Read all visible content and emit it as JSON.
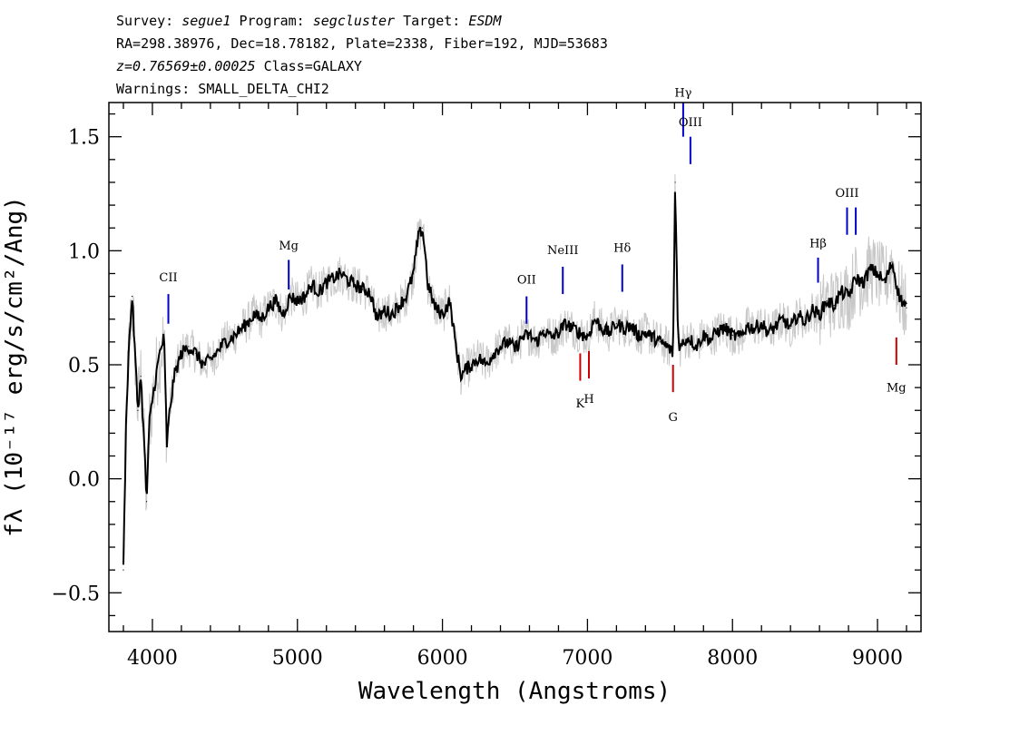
{
  "header": {
    "survey_label": "Survey:",
    "survey": "segue1",
    "program_label": "Program:",
    "program": "segcluster",
    "target_label": "Target:",
    "target": "ESDM",
    "line2": "RA=298.38976, Dec=18.78182, Plate=2338, Fiber=192, MJD=53683",
    "redshift": "z=0.76569±0.00025",
    "class": "Class=GALAXY",
    "warnings": "Warnings: SMALL_DELTA_CHI2"
  },
  "chart_data": {
    "type": "line",
    "xlabel": "Wavelength (Angstroms)",
    "ylabel": "fλ (10⁻¹⁷ erg/s/cm²/Ang)",
    "xlim": [
      3700,
      9300
    ],
    "ylim": [
      -0.67,
      1.65
    ],
    "xticks": [
      4000,
      5000,
      6000,
      7000,
      8000,
      9000
    ],
    "yticks": [
      -0.5,
      0.0,
      0.5,
      1.0,
      1.5
    ],
    "ytick_labels": [
      "−0.5",
      "0.0",
      "0.5",
      "1.0",
      "1.5"
    ],
    "series": [
      {
        "color": "#000000",
        "role": "model",
        "x": [
          3800,
          3820,
          3840,
          3860,
          3880,
          3900,
          3920,
          3940,
          3960,
          3980,
          4000,
          4050,
          4080,
          4100,
          4120,
          4150,
          4200,
          4250,
          4300,
          4350,
          4400,
          4450,
          4500,
          4550,
          4600,
          4650,
          4700,
          4750,
          4800,
          4850,
          4900,
          4950,
          5000,
          5050,
          5100,
          5150,
          5200,
          5250,
          5300,
          5350,
          5400,
          5450,
          5500,
          5550,
          5600,
          5650,
          5700,
          5750,
          5800,
          5830,
          5860,
          5880,
          5900,
          5950,
          6000,
          6050,
          6100,
          6130,
          6160,
          6200,
          6250,
          6300,
          6350,
          6400,
          6450,
          6500,
          6550,
          6600,
          6650,
          6700,
          6750,
          6800,
          6850,
          6900,
          6950,
          7000,
          7050,
          7100,
          7150,
          7200,
          7250,
          7300,
          7350,
          7400,
          7450,
          7500,
          7550,
          7590,
          7605,
          7615,
          7625,
          7640,
          7660,
          7700,
          7750,
          7800,
          7850,
          7900,
          7950,
          8000,
          8050,
          8100,
          8150,
          8200,
          8250,
          8300,
          8350,
          8400,
          8450,
          8500,
          8550,
          8600,
          8650,
          8700,
          8750,
          8800,
          8850,
          8900,
          8950,
          9000,
          9050,
          9100,
          9150,
          9200
        ],
        "y": [
          -0.4,
          0.3,
          0.6,
          0.8,
          0.55,
          0.3,
          0.45,
          0.2,
          -0.1,
          0.25,
          0.35,
          0.55,
          0.62,
          0.15,
          0.3,
          0.45,
          0.55,
          0.58,
          0.55,
          0.5,
          0.52,
          0.56,
          0.6,
          0.62,
          0.65,
          0.68,
          0.72,
          0.7,
          0.75,
          0.78,
          0.72,
          0.8,
          0.78,
          0.8,
          0.85,
          0.82,
          0.86,
          0.88,
          0.9,
          0.87,
          0.85,
          0.83,
          0.82,
          0.7,
          0.74,
          0.72,
          0.76,
          0.8,
          0.9,
          1.05,
          1.1,
          1.0,
          0.85,
          0.75,
          0.72,
          0.78,
          0.55,
          0.45,
          0.48,
          0.5,
          0.53,
          0.5,
          0.55,
          0.58,
          0.6,
          0.57,
          0.62,
          0.63,
          0.6,
          0.65,
          0.62,
          0.64,
          0.68,
          0.66,
          0.64,
          0.62,
          0.7,
          0.66,
          0.64,
          0.68,
          0.66,
          0.67,
          0.63,
          0.64,
          0.62,
          0.6,
          0.58,
          0.55,
          1.3,
          0.95,
          0.62,
          0.57,
          0.6,
          0.62,
          0.58,
          0.63,
          0.61,
          0.65,
          0.66,
          0.63,
          0.62,
          0.67,
          0.66,
          0.68,
          0.64,
          0.67,
          0.7,
          0.66,
          0.72,
          0.69,
          0.74,
          0.72,
          0.78,
          0.76,
          0.82,
          0.8,
          0.88,
          0.86,
          0.92,
          0.9,
          0.86,
          0.95,
          0.8,
          0.75
        ]
      }
    ],
    "noise_color": "#c8c8c8",
    "lines": [
      {
        "name": "CII",
        "wavelength": 4110,
        "color": "#0000cc",
        "y1": 0.68,
        "y2": 0.81,
        "label_y": 0.85,
        "label_pos": "above"
      },
      {
        "name": "Mg",
        "wavelength": 4940,
        "color": "#0000cc",
        "y1": 0.83,
        "y2": 0.96,
        "label_y": 0.99,
        "label_pos": "above"
      },
      {
        "name": "OII",
        "wavelength": 6580,
        "color": "#0000cc",
        "y1": 0.68,
        "y2": 0.8,
        "label_y": 0.84,
        "label_pos": "above"
      },
      {
        "name": "NeIII",
        "wavelength": 6830,
        "color": "#0000cc",
        "y1": 0.81,
        "y2": 0.93,
        "label_y": 0.97,
        "label_pos": "above"
      },
      {
        "name": "Hδ",
        "wavelength": 7240,
        "color": "#0000cc",
        "y1": 0.82,
        "y2": 0.94,
        "label_y": 0.98,
        "label_pos": "above"
      },
      {
        "name": "Hγ",
        "wavelength": 7660,
        "color": "#0000cc",
        "y1": 1.5,
        "y2": 1.65,
        "label_y": 1.66,
        "label_pos": "above"
      },
      {
        "name": "OIII",
        "wavelength": 7710,
        "color": "#0000cc",
        "y1": 1.38,
        "y2": 1.5,
        "label_y": 1.53,
        "label_pos": "above"
      },
      {
        "name": "Hβ",
        "wavelength": 8590,
        "color": "#0000cc",
        "y1": 0.86,
        "y2": 0.97,
        "label_y": 1.0,
        "label_pos": "above"
      },
      {
        "name": "OIII",
        "wavelength": 8790,
        "color": "#0000cc",
        "y1": 1.07,
        "y2": 1.19,
        "label_y": 1.22,
        "label_pos": "above"
      },
      {
        "name": "",
        "wavelength": 8850,
        "color": "#0000cc",
        "y1": 1.07,
        "y2": 1.19,
        "label_y": 1.22,
        "label_pos": "above"
      },
      {
        "name": "K",
        "wavelength": 6950,
        "color": "#cc0000",
        "y1": 0.43,
        "y2": 0.55,
        "label_y": 0.36,
        "label_pos": "below"
      },
      {
        "name": "H",
        "wavelength": 7010,
        "color": "#cc0000",
        "y1": 0.44,
        "y2": 0.56,
        "label_y": 0.38,
        "label_pos": "below"
      },
      {
        "name": "G",
        "wavelength": 7590,
        "color": "#cc0000",
        "y1": 0.38,
        "y2": 0.5,
        "label_y": 0.3,
        "label_pos": "below"
      },
      {
        "name": "Mg",
        "wavelength": 9130,
        "color": "#cc0000",
        "y1": 0.5,
        "y2": 0.62,
        "label_y": 0.43,
        "label_pos": "below"
      }
    ]
  }
}
